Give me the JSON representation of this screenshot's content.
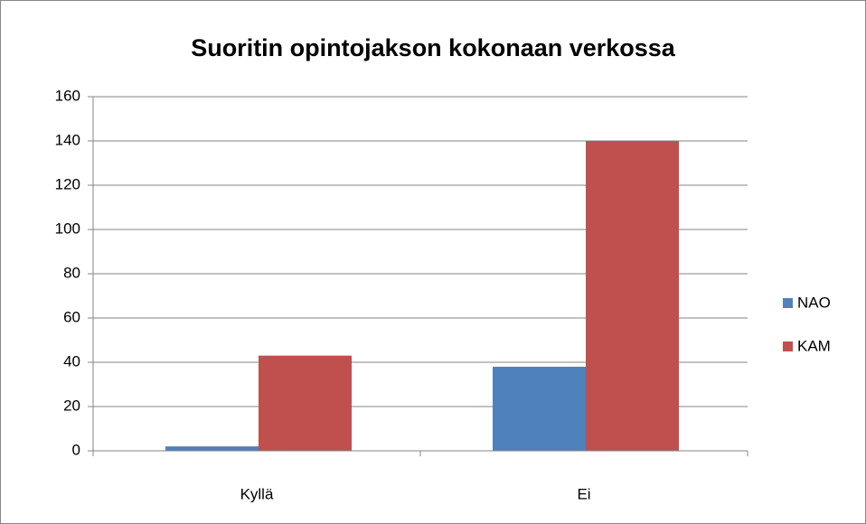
{
  "chart_data": {
    "type": "bar",
    "title": "Suoritin opintojakson kokonaan verkossa",
    "categories": [
      "Kyllä",
      "Ei"
    ],
    "series": [
      {
        "name": "NAO",
        "color": "#4f81bd",
        "values": [
          2,
          38
        ]
      },
      {
        "name": "KAM",
        "color": "#c0504d",
        "values": [
          43,
          140
        ]
      }
    ],
    "ylim": [
      0,
      160
    ],
    "yticks": [
      0,
      20,
      40,
      60,
      80,
      100,
      120,
      140,
      160
    ],
    "grid": true,
    "legend": "right"
  }
}
